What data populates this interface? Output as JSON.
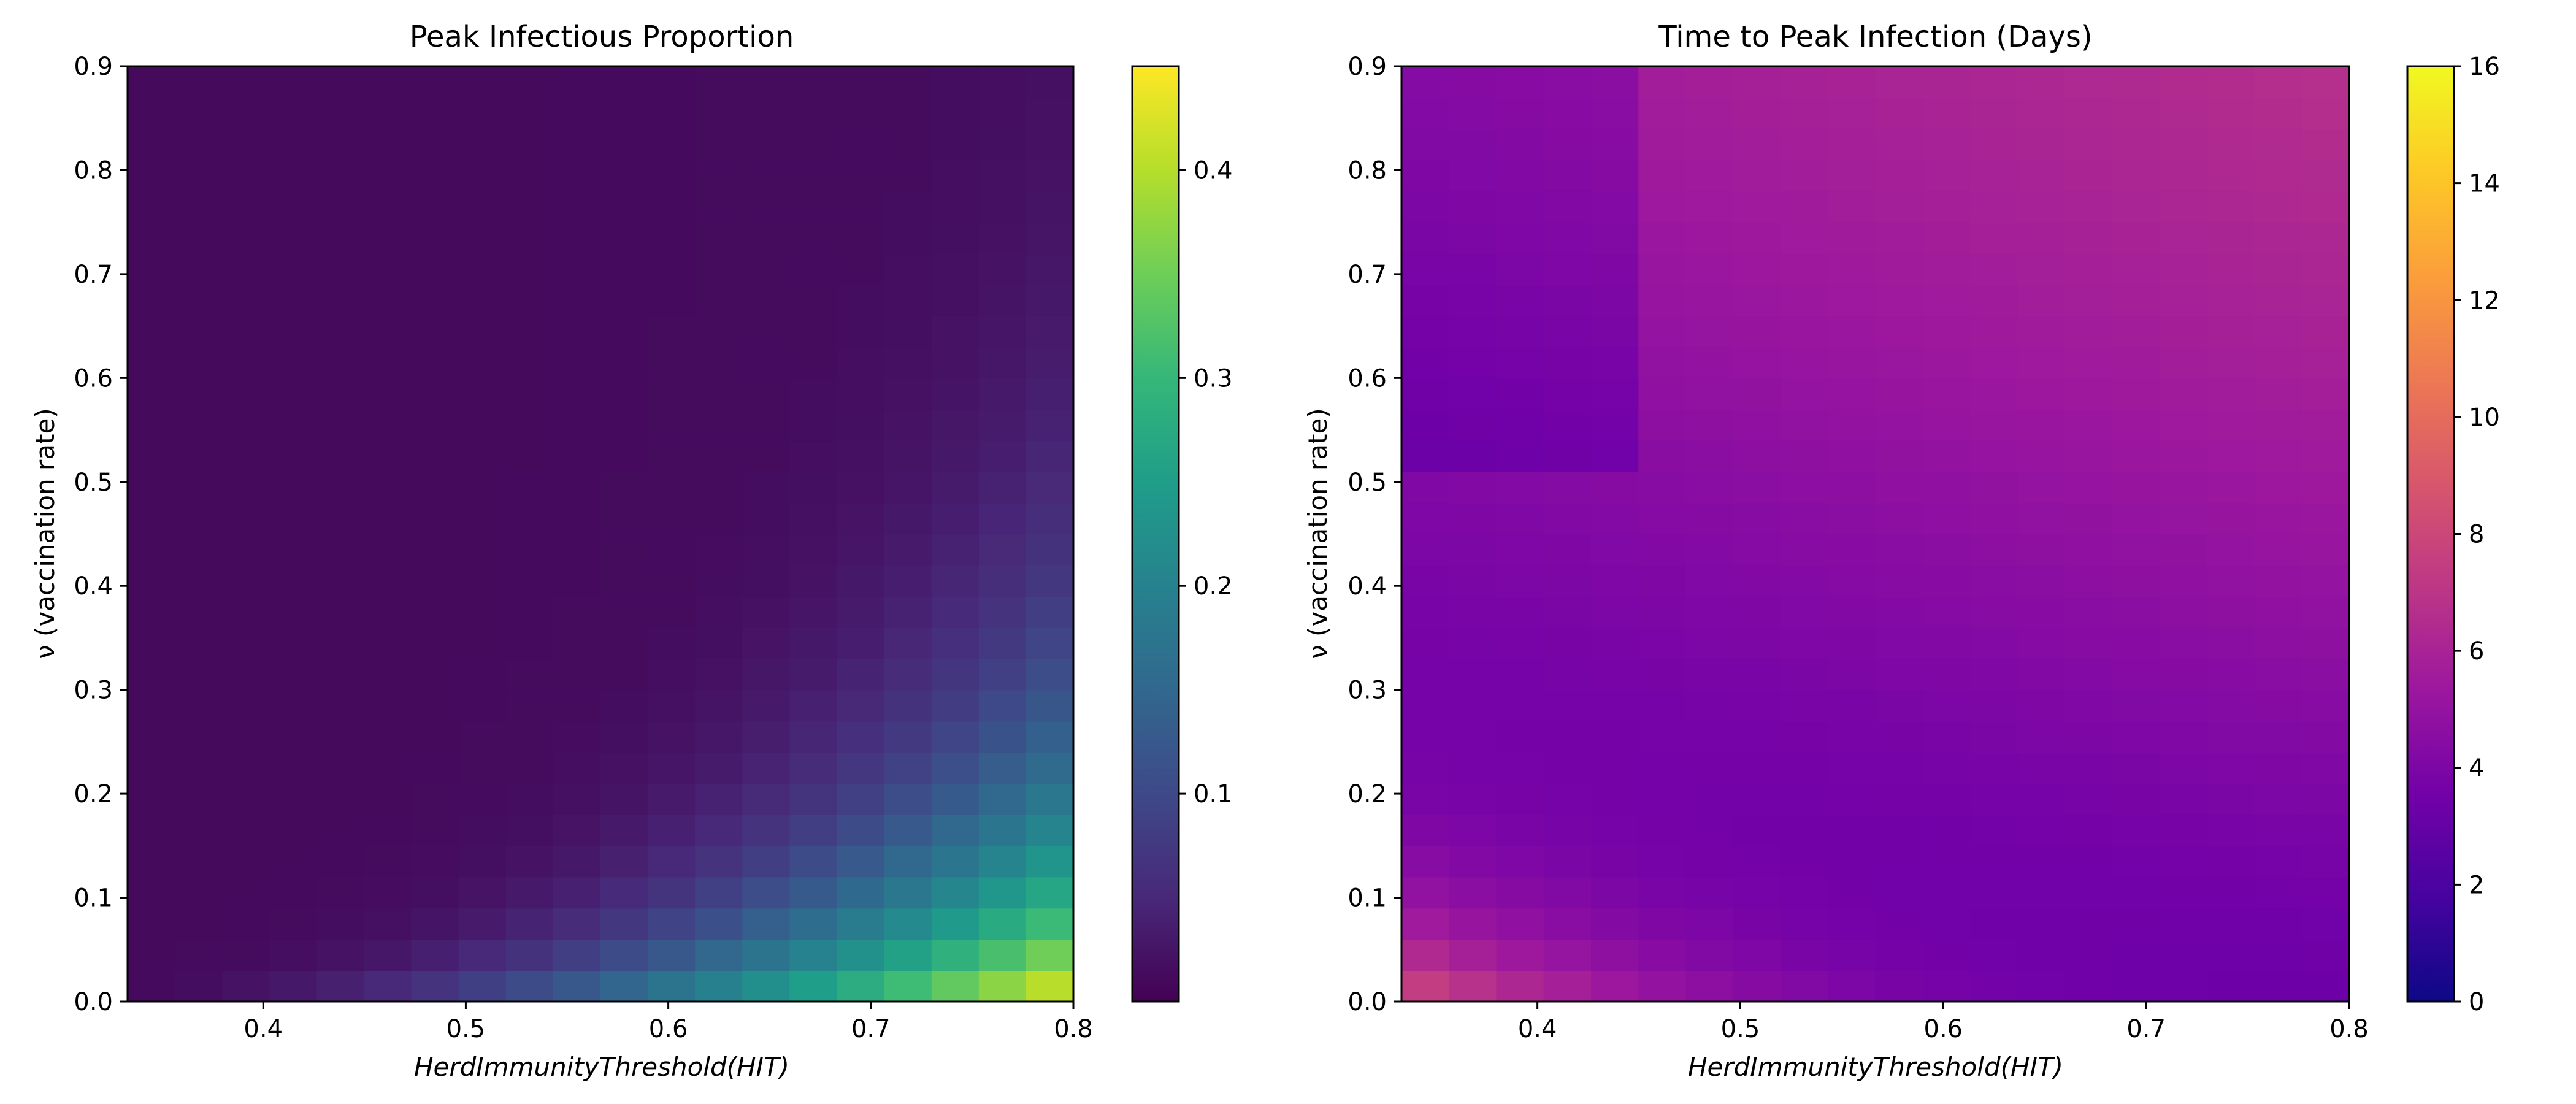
{
  "chart_data": [
    {
      "type": "heatmap",
      "title": "Peak Infectious Proportion",
      "xlabel": "HerdImmunityThreshold(HIT)",
      "ylabel": "ν (vaccination rate)",
      "xlim": [
        0.333,
        0.8
      ],
      "ylim": [
        0,
        0.9
      ],
      "x_ticks": [
        "0.4",
        "0.5",
        "0.6",
        "0.7",
        "0.8"
      ],
      "y_ticks": [
        "0.0",
        "0.1",
        "0.2",
        "0.3",
        "0.4",
        "0.5",
        "0.6",
        "0.7",
        "0.8",
        "0.9"
      ],
      "grid": false,
      "colormap": "viridis",
      "colorbar": {
        "range": [
          0.0,
          0.45
        ],
        "ticks": [
          "0.1",
          "0.2",
          "0.3",
          "0.4"
        ]
      },
      "z_model": {
        "description": "value peaks at high HIT and low vaccination rate",
        "max": 0.45,
        "min": 0.0
      }
    },
    {
      "type": "heatmap",
      "title": "Time to Peak Infection (Days)",
      "xlabel": "HerdImmunityThreshold(HIT)",
      "ylabel": "ν (vaccination rate)",
      "xlim": [
        0.333,
        0.8
      ],
      "ylim": [
        0,
        0.9
      ],
      "x_ticks": [
        "0.4",
        "0.5",
        "0.6",
        "0.7",
        "0.8"
      ],
      "y_ticks": [
        "0.0",
        "0.1",
        "0.2",
        "0.3",
        "0.4",
        "0.5",
        "0.6",
        "0.7",
        "0.8",
        "0.9"
      ],
      "grid": false,
      "colormap": "plasma",
      "colorbar": {
        "range": [
          0,
          16
        ],
        "ticks": [
          "0",
          "2",
          "4",
          "6",
          "8",
          "10",
          "12",
          "14",
          "16"
        ]
      },
      "z_model": {
        "description": "value peaks near low HIT and low vaccination rate",
        "max": 16,
        "min": 0
      }
    }
  ]
}
